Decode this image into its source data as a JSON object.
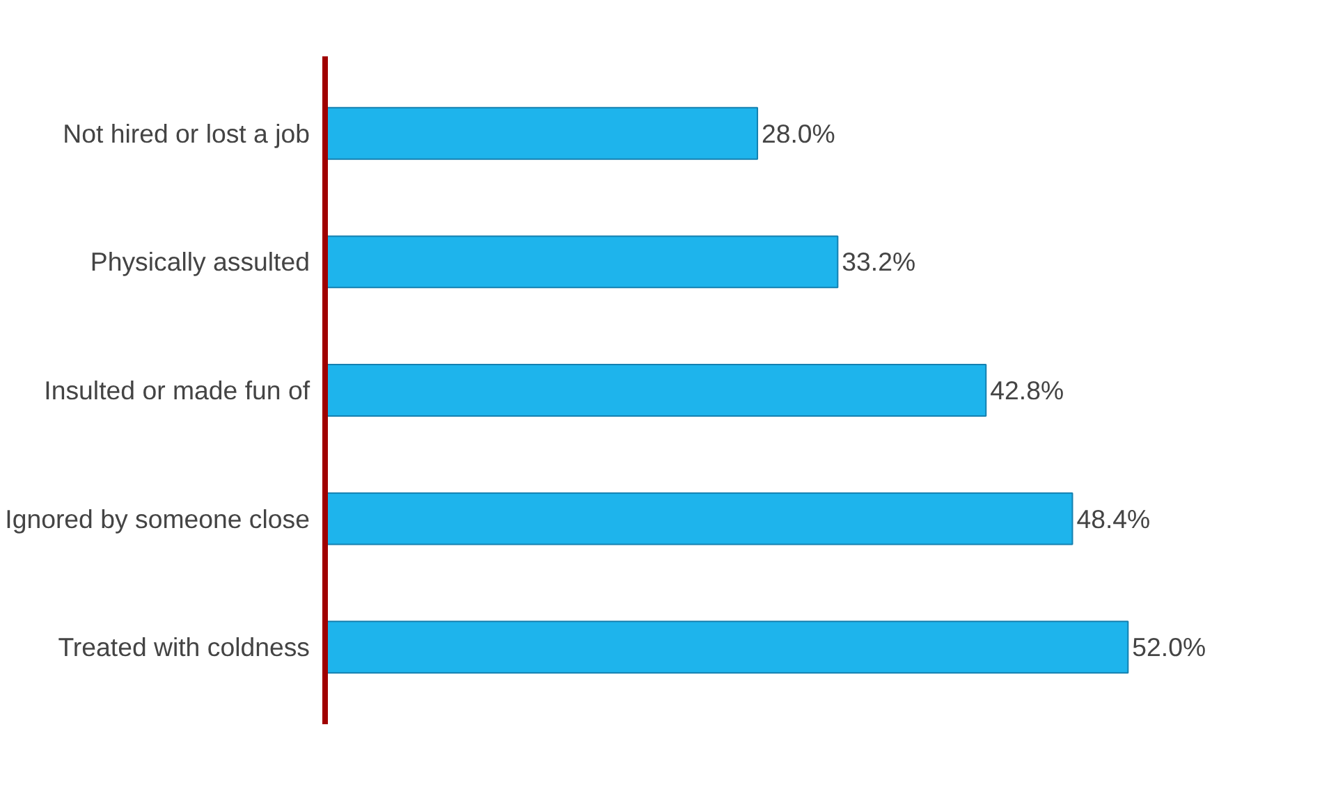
{
  "chart_data": {
    "type": "bar",
    "orientation": "horizontal",
    "categories": [
      "Not hired or lost a job",
      "Physically assulted",
      "Insulted or made fun of",
      "Ignored by someone close",
      "Treated with coldness"
    ],
    "values": [
      28.0,
      33.2,
      42.8,
      48.4,
      52.0
    ],
    "value_labels": [
      "28.0%",
      "33.2%",
      "42.8%",
      "48.4%",
      "52.0%"
    ],
    "color": "#1eb4ec",
    "tick_labels": "y",
    "grid": false
  }
}
